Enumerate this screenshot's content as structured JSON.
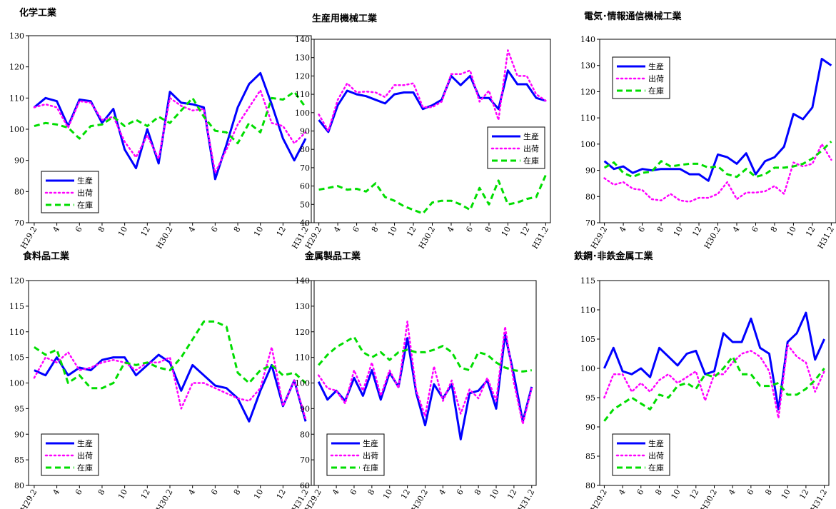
{
  "chart_data": [
    {
      "type": "line",
      "title": "化学工業",
      "ylim": [
        70,
        130
      ],
      "ystep": 10,
      "xticks": [
        "H29.2",
        "4",
        "6",
        "8",
        "10",
        "12",
        "H30.2",
        "4",
        "6",
        "8",
        "10",
        "12",
        "H31.2"
      ],
      "legend_position": "bottom-left",
      "series": [
        {
          "name": "生産",
          "color": "#0000ff",
          "values": [
            107,
            110,
            109,
            101,
            109.5,
            109,
            102,
            106.5,
            93.5,
            87.5,
            100,
            89,
            112,
            108.5,
            108,
            107,
            84,
            95,
            107,
            114.5,
            118,
            108,
            97,
            90,
            97
          ]
        },
        {
          "name": "出荷",
          "color": "#ff00ff",
          "values": [
            107,
            108,
            107,
            100.5,
            109,
            108.5,
            103,
            104,
            96,
            91,
            98,
            90.5,
            110,
            107.5,
            106,
            106.5,
            86,
            93.5,
            101.5,
            107,
            112.5,
            102,
            101,
            95.5,
            99
          ]
        },
        {
          "name": "在庫",
          "color": "#00dd00",
          "values": [
            101,
            102,
            101.5,
            100.5,
            97,
            101,
            101.5,
            104,
            101,
            103,
            101,
            104,
            102,
            106,
            110,
            104,
            99.5,
            99,
            95.5,
            102,
            99,
            110,
            109.5,
            112,
            107
          ]
        }
      ]
    },
    {
      "type": "line",
      "title": "生産用機械工業",
      "ylim": [
        40,
        140
      ],
      "ystep": 10,
      "xticks": [
        "H29.2",
        "4",
        "6",
        "8",
        "10",
        "12",
        "H30.2",
        "4",
        "6",
        "8",
        "10",
        "12",
        "H31.2"
      ],
      "legend_position": "middle-right",
      "series": [
        {
          "name": "生産",
          "color": "#0000ff",
          "values": [
            96,
            89.5,
            104,
            112,
            110,
            109,
            107,
            105,
            110,
            111,
            111,
            102,
            104,
            107,
            120,
            115,
            120,
            108,
            108,
            102,
            123,
            115.5,
            115.5,
            108,
            106.5
          ]
        },
        {
          "name": "出荷",
          "color": "#ff00ff",
          "values": [
            99,
            90,
            107,
            116,
            111,
            111.5,
            111,
            108.5,
            115,
            115,
            116,
            103,
            103,
            106,
            121,
            121,
            123,
            106,
            112,
            96,
            134,
            120,
            120,
            110,
            106.5
          ]
        },
        {
          "name": "在庫",
          "color": "#00dd00",
          "values": [
            58,
            59,
            60,
            58,
            58.5,
            57,
            61.5,
            54,
            52,
            49,
            47,
            45,
            51,
            52,
            52,
            50,
            47,
            59,
            50,
            63,
            50,
            51,
            53,
            54,
            66
          ]
        }
      ]
    },
    {
      "type": "line",
      "title": "電気･情報通信機械工業",
      "ylim": [
        70,
        140
      ],
      "ystep": 10,
      "xticks": [
        "H29.2",
        "4",
        "6",
        "8",
        "10",
        "12",
        "H30.2",
        "4",
        "6",
        "8",
        "10",
        "12",
        "H31.2"
      ],
      "legend_position": "top-left",
      "series": [
        {
          "name": "生産",
          "color": "#0000ff",
          "values": [
            93.5,
            90.5,
            91.5,
            89,
            90.5,
            90,
            90.5,
            90.5,
            90.5,
            88.5,
            88.5,
            86,
            96,
            95,
            92.5,
            96.5,
            88.5,
            93.5,
            95,
            99,
            111.5,
            109.5,
            114,
            132.5,
            130
          ]
        },
        {
          "name": "出荷",
          "color": "#ff00ff",
          "values": [
            87,
            84.5,
            85.5,
            83,
            82.5,
            79,
            78.5,
            81,
            78.5,
            78,
            79.5,
            79.5,
            81,
            85.5,
            79,
            81.5,
            81.5,
            82,
            84,
            81,
            93,
            91.5,
            92.5,
            100,
            94
          ]
        },
        {
          "name": "在庫",
          "color": "#00dd00",
          "values": [
            91,
            93,
            89,
            87.5,
            89,
            89.5,
            93.5,
            91.5,
            92,
            92.5,
            92.5,
            91,
            91.5,
            88.5,
            87.5,
            90.5,
            87.5,
            88.5,
            91,
            91,
            91.5,
            92.5,
            94.5,
            97.5,
            101
          ]
        }
      ]
    },
    {
      "type": "line",
      "title": "食料品工業",
      "ylim": [
        80,
        120
      ],
      "ystep": 5,
      "xticks": [
        "H29.2",
        "4",
        "6",
        "8",
        "10",
        "12",
        "H30.2",
        "4",
        "6",
        "8",
        "10",
        "12",
        "H31.2"
      ],
      "legend_position": "bottom-left",
      "series": [
        {
          "name": "生産",
          "color": "#0000ff",
          "values": [
            102.5,
            101.5,
            105,
            101.5,
            103,
            102.5,
            104.5,
            105,
            105,
            101.5,
            103.5,
            105.5,
            104,
            98.5,
            103.5,
            101.5,
            99.5,
            99,
            97,
            92.5,
            98.5,
            103.5,
            95.5,
            100.5,
            92.5
          ]
        },
        {
          "name": "出荷",
          "color": "#ff00ff",
          "values": [
            101,
            105,
            104,
            106,
            102.5,
            103,
            104,
            104.5,
            104,
            102.5,
            104,
            104,
            105,
            95,
            100,
            100,
            99,
            98,
            97,
            96.5,
            99,
            107,
            95.5,
            100.5,
            93
          ]
        },
        {
          "name": "在庫",
          "color": "#00dd00",
          "values": [
            107,
            105.5,
            106.5,
            100,
            101.5,
            99,
            99,
            100,
            104,
            103.5,
            104,
            103,
            102.5,
            105,
            108.5,
            112,
            112,
            111,
            102,
            100,
            102.5,
            103.5,
            101.5,
            102,
            100
          ]
        }
      ]
    },
    {
      "type": "line",
      "title": "金属製品工業",
      "ylim": [
        60,
        140
      ],
      "ystep": 10,
      "xticks": [
        "H29.2",
        "4",
        "6",
        "8",
        "10",
        "12",
        "H30.2",
        "4",
        "6",
        "8",
        "10",
        "12",
        "H31.2"
      ],
      "legend_position": "bottom-left",
      "series": [
        {
          "name": "生産",
          "color": "#0000ff",
          "values": [
            100.5,
            93.5,
            97,
            93,
            102,
            95,
            105,
            93.5,
            104,
            98.5,
            117.5,
            96,
            83.5,
            99.5,
            94,
            99.5,
            78,
            96,
            97,
            101,
            90,
            119,
            103,
            85,
            98.5
          ]
        },
        {
          "name": "出荷",
          "color": "#ff00ff",
          "values": [
            103,
            98,
            97,
            92,
            105,
            97,
            108,
            95,
            105,
            98,
            124,
            97,
            87,
            106.5,
            93,
            101,
            88,
            97.5,
            94,
            102,
            93,
            122,
            100,
            84,
            98
          ]
        },
        {
          "name": "在庫",
          "color": "#00dd00",
          "values": [
            107,
            111,
            114,
            116,
            118,
            112,
            110,
            112,
            109,
            112,
            113,
            112,
            112,
            113,
            114.5,
            112,
            106,
            105,
            112,
            111,
            108,
            106,
            105,
            104.5,
            105
          ]
        }
      ]
    },
    {
      "type": "line",
      "title": "鉄鋼･非鉄金属工業",
      "ylim": [
        80,
        115
      ],
      "ystep": 5,
      "xticks": [
        "H29.2",
        "4",
        "6",
        "8",
        "10",
        "12",
        "H30.2",
        "4",
        "6",
        "8",
        "10",
        "12",
        "H31.2"
      ],
      "legend_position": "bottom-left",
      "series": [
        {
          "name": "生産",
          "color": "#0000ff",
          "values": [
            100,
            103.5,
            99.5,
            99,
            100,
            98.5,
            103.5,
            102,
            100.5,
            102.5,
            103,
            99,
            99.5,
            106,
            104.5,
            104.5,
            108.5,
            103.5,
            102.5,
            93,
            104.5,
            106,
            109.5,
            101.5,
            105
          ]
        },
        {
          "name": "出荷",
          "color": "#ff00ff",
          "values": [
            95,
            99,
            99,
            96,
            97.5,
            96,
            98,
            99,
            97.5,
            98.5,
            99.5,
            94.5,
            99,
            99,
            101,
            102.5,
            103,
            102,
            99.5,
            91.5,
            104,
            102,
            101,
            96,
            99.5
          ]
        },
        {
          "name": "在庫",
          "color": "#00dd00",
          "values": [
            91,
            93,
            94,
            95,
            94,
            93,
            95.5,
            95,
            97,
            97.5,
            96.5,
            99,
            98.5,
            100,
            102,
            99,
            99,
            97,
            97,
            97.5,
            95.5,
            95.5,
            96.5,
            98,
            100
          ]
        }
      ]
    }
  ]
}
